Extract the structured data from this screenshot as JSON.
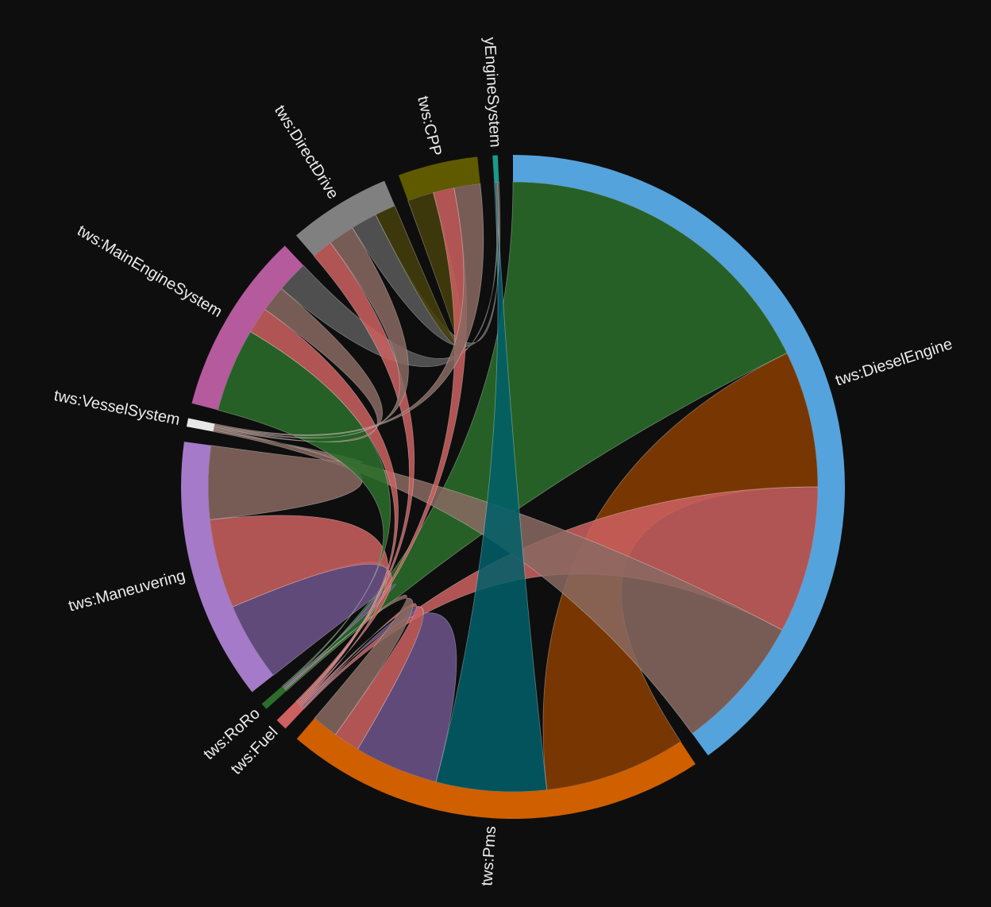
{
  "chart_data": {
    "type": "chord",
    "groups": [
      {
        "name": "tws:DieselEngine",
        "color": "#55a3dc"
      },
      {
        "name": "tws:Pms",
        "color": "#d05f00"
      },
      {
        "name": "tws:Fuel",
        "color": "#cd6060"
      },
      {
        "name": "tws:RoRo",
        "color": "#2a6e2a"
      },
      {
        "name": "tws:Maneuvering",
        "color": "#a57ac8"
      },
      {
        "name": "tws:VesselSystem",
        "color": "#e8e8e8"
      },
      {
        "name": "tws:MainEngineSystem",
        "color": "#b55a9c"
      },
      {
        "name": "tws:DirectDrive",
        "color": "#808080"
      },
      {
        "name": "tws:CPP",
        "color": "#5f5a00"
      },
      {
        "name": "yEngineSystem",
        "color": "#1a9a8a"
      }
    ],
    "chords": [
      {
        "source": 0,
        "target": 3,
        "source_value": 64,
        "target_value": 0.3,
        "color": "#2a6e2a"
      },
      {
        "source": 0,
        "target": 1,
        "source_value": 26,
        "target_value": 27,
        "color": "#8b3e00"
      },
      {
        "source": 0,
        "target": 2,
        "source_value": 28,
        "target_value": 0.3,
        "color": "#cd6060"
      },
      {
        "source": 0,
        "target": 5,
        "source_value": 26,
        "target_value": 0.3,
        "color": "#8a6a62"
      },
      {
        "source": 1,
        "target": 9,
        "source_value": 21,
        "target_value": 0.3,
        "color": "#005f6a"
      },
      {
        "source": 1,
        "target": 2,
        "source_value": 16,
        "target_value": 0.3,
        "color": "#6e558c"
      },
      {
        "source": 1,
        "target": 2,
        "source_value": 5,
        "target_value": 0.3,
        "color": "#cd6060"
      },
      {
        "source": 1,
        "target": 3,
        "source_value": 5,
        "target_value": 0.3,
        "color": "#8a6a62"
      },
      {
        "source": 4,
        "target": 3,
        "source_value": 15,
        "target_value": 0.3,
        "color": "#6e558c"
      },
      {
        "source": 4,
        "target": 2,
        "source_value": 17,
        "target_value": 0.3,
        "color": "#cd6060"
      },
      {
        "source": 4,
        "target": 5,
        "source_value": 14,
        "target_value": 0.3,
        "color": "#8a6a62"
      },
      {
        "source": 6,
        "target": 3,
        "source_value": 16,
        "target_value": 0.3,
        "color": "#2a6e2a"
      },
      {
        "source": 6,
        "target": 2,
        "source_value": 5,
        "target_value": 0.3,
        "color": "#cd6060"
      },
      {
        "source": 6,
        "target": 5,
        "source_value": 5,
        "target_value": 0.3,
        "color": "#8a6a62"
      },
      {
        "source": 6,
        "target": 9,
        "source_value": 6,
        "target_value": 0.3,
        "color": "#5a5a5a"
      },
      {
        "source": 7,
        "target": 2,
        "source_value": 4,
        "target_value": 0.3,
        "color": "#cd6060"
      },
      {
        "source": 7,
        "target": 5,
        "source_value": 5,
        "target_value": 0.3,
        "color": "#8a6a62"
      },
      {
        "source": 7,
        "target": 9,
        "source_value": 5,
        "target_value": 0.3,
        "color": "#5a5a5a"
      },
      {
        "source": 7,
        "target": 8,
        "source_value": 4,
        "target_value": 5,
        "color": "#45400a"
      },
      {
        "source": 8,
        "target": 2,
        "source_value": 4,
        "target_value": 0.3,
        "color": "#cd6060"
      },
      {
        "source": 8,
        "target": 5,
        "source_value": 5,
        "target_value": 0.3,
        "color": "#8a6a62"
      }
    ]
  }
}
